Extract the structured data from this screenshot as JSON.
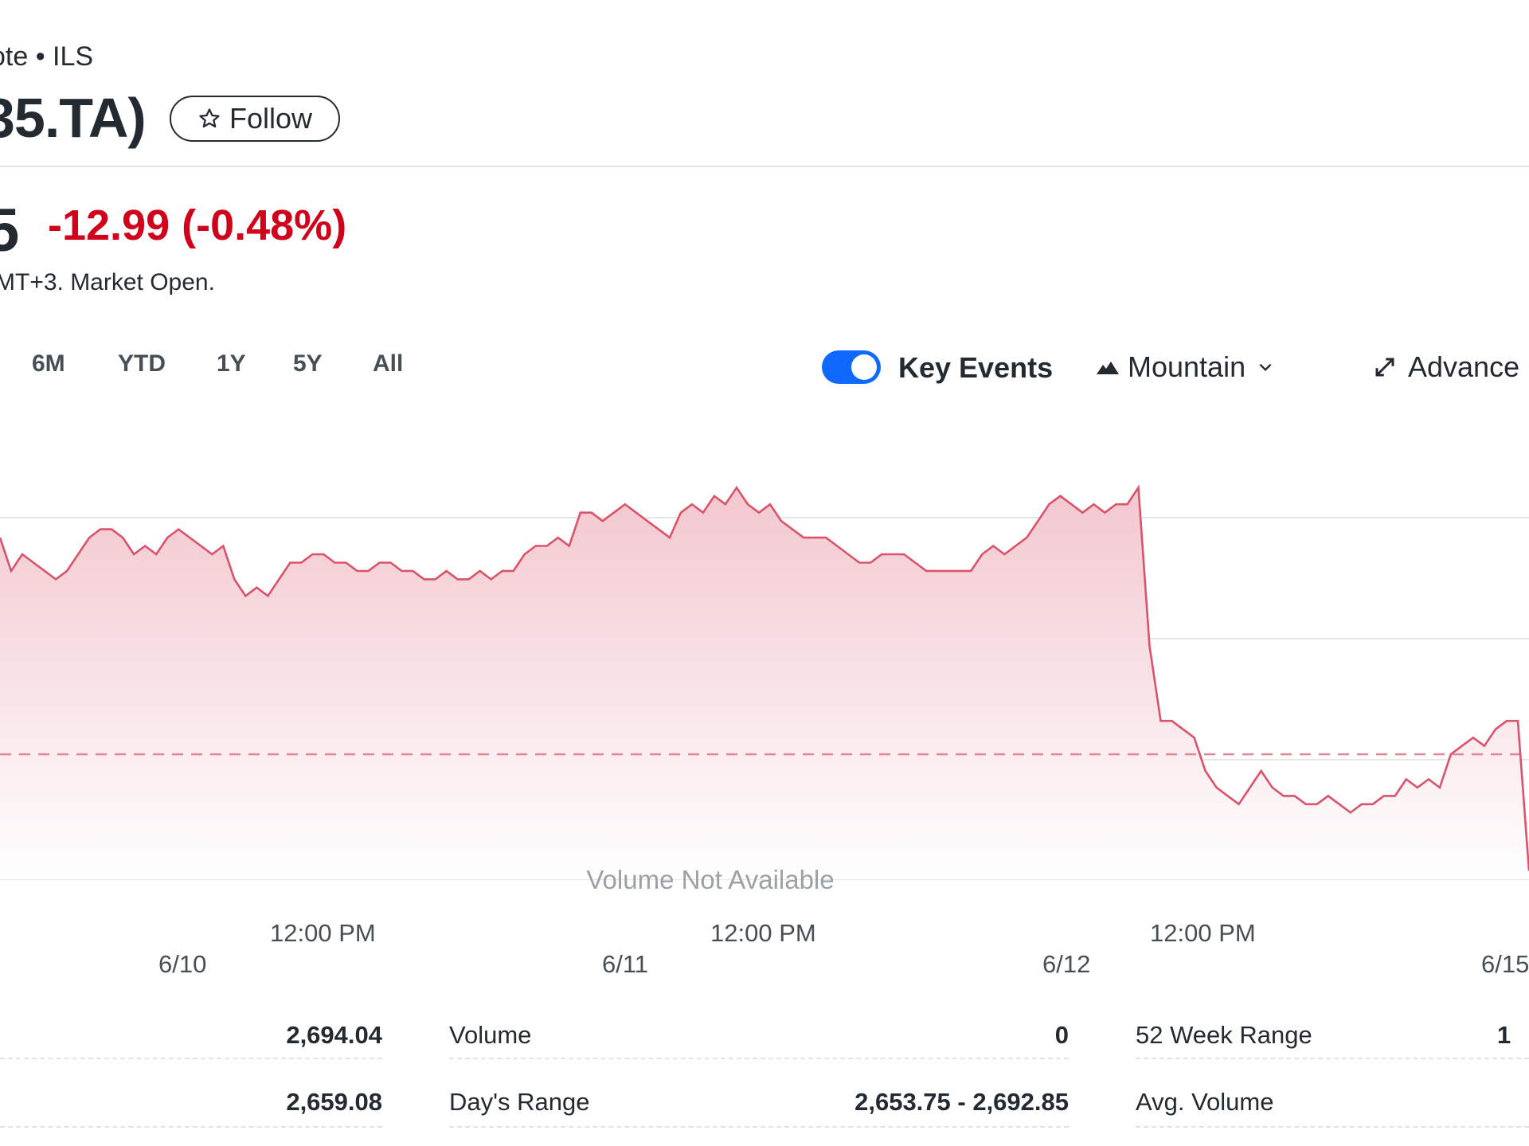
{
  "header": {
    "quote_source": "ote • ILS",
    "ticker": "35.TA)",
    "follow_label": "Follow"
  },
  "price": {
    "value": "5",
    "change": "-12.99 (-0.48%)",
    "status": "MT+3. Market Open."
  },
  "toolbar": {
    "ranges": [
      "6M",
      "YTD",
      "1Y",
      "5Y",
      "All"
    ],
    "key_events_label": "Key Events",
    "key_events_on": true,
    "chart_type_label": "Mountain",
    "advanced_label": "Advance"
  },
  "chart_data": {
    "type": "area",
    "x_labels": {
      "times": [
        "12:00 PM",
        "12:00 PM",
        "12:00 PM"
      ],
      "dates": [
        "6/10",
        "6/11",
        "6/12",
        "6/15"
      ]
    },
    "previous_close_reference": true,
    "volume_note": "Volume Not Available",
    "colors": {
      "line": "#d9536b",
      "fill_top": "#f3c7cf",
      "fill_bottom": "#ffffff",
      "reference": "#e08a98",
      "grid": "#e6e6e6"
    },
    "values": [
      2686,
      2682,
      2684,
      2683,
      2682,
      2681,
      2682,
      2684,
      2686,
      2687,
      2687,
      2686,
      2684,
      2685,
      2684,
      2686,
      2687,
      2686,
      2685,
      2684,
      2685,
      2681,
      2679,
      2680,
      2679,
      2681,
      2683,
      2683,
      2684,
      2684,
      2683,
      2683,
      2682,
      2682,
      2683,
      2683,
      2682,
      2682,
      2681,
      2681,
      2682,
      2681,
      2681,
      2682,
      2681,
      2682,
      2682,
      2684,
      2685,
      2685,
      2686,
      2685,
      2689,
      2689,
      2688,
      2689,
      2690,
      2689,
      2688,
      2687,
      2686,
      2689,
      2690,
      2689,
      2691,
      2690,
      2692,
      2690,
      2689,
      2690,
      2688,
      2687,
      2686,
      2686,
      2686,
      2685,
      2684,
      2683,
      2683,
      2684,
      2684,
      2684,
      2683,
      2682,
      2682,
      2682,
      2682,
      2682,
      2684,
      2685,
      2684,
      2685,
      2686,
      2688,
      2690,
      2691,
      2690,
      2689,
      2690,
      2689,
      2690,
      2690,
      2692,
      2673,
      2664,
      2664,
      2663,
      2662,
      2658,
      2656,
      2655,
      2654,
      2656,
      2658,
      2656,
      2655,
      2655,
      2654,
      2654,
      2655,
      2654,
      2653,
      2654,
      2654,
      2655,
      2655,
      2657,
      2656,
      2657,
      2656,
      2660,
      2661,
      2662,
      2661,
      2663,
      2664,
      2664,
      2646
    ],
    "y_reference": 2660,
    "ylim": [
      2645,
      2697
    ]
  },
  "stats": {
    "rows": [
      {
        "left_value": "2,694.04",
        "mid_label": "Volume",
        "mid_value": "0",
        "right_label": "52 Week Range",
        "right_value": "1"
      },
      {
        "left_value": "2,659.08",
        "mid_label": "Day's Range",
        "mid_value": "2,653.75 - 2,692.85",
        "right_label": "Avg. Volume",
        "right_value": ""
      }
    ]
  }
}
